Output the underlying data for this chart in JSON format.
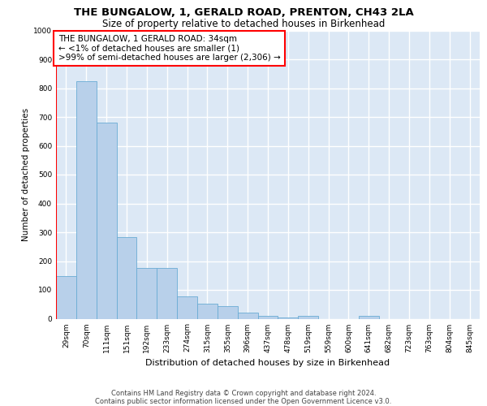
{
  "title": "THE BUNGALOW, 1, GERALD ROAD, PRENTON, CH43 2LA",
  "subtitle": "Size of property relative to detached houses in Birkenhead",
  "xlabel": "Distribution of detached houses by size in Birkenhead",
  "ylabel": "Number of detached properties",
  "categories": [
    "29sqm",
    "70sqm",
    "111sqm",
    "151sqm",
    "192sqm",
    "233sqm",
    "274sqm",
    "315sqm",
    "355sqm",
    "396sqm",
    "437sqm",
    "478sqm",
    "519sqm",
    "559sqm",
    "600sqm",
    "641sqm",
    "682sqm",
    "723sqm",
    "763sqm",
    "804sqm",
    "845sqm"
  ],
  "values": [
    148,
    825,
    680,
    283,
    175,
    175,
    78,
    52,
    43,
    21,
    11,
    3,
    10,
    0,
    0,
    10,
    0,
    0,
    0,
    0,
    0
  ],
  "bar_color": "#b8d0ea",
  "bar_edge_color": "#6aacd4",
  "annotation_text": "THE BUNGALOW, 1 GERALD ROAD: 34sqm\n← <1% of detached houses are smaller (1)\n>99% of semi-detached houses are larger (2,306) →",
  "footer_line1": "Contains HM Land Registry data © Crown copyright and database right 2024.",
  "footer_line2": "Contains public sector information licensed under the Open Government Licence v3.0.",
  "ylim": [
    0,
    1000
  ],
  "yticks": [
    0,
    100,
    200,
    300,
    400,
    500,
    600,
    700,
    800,
    900,
    1000
  ],
  "background_color": "#dce8f5",
  "grid_color": "white",
  "title_fontsize": 9.5,
  "subtitle_fontsize": 8.5,
  "annotation_fontsize": 7.5,
  "tick_fontsize": 6.5,
  "ylabel_fontsize": 7.5,
  "xlabel_fontsize": 8,
  "footer_fontsize": 6.0
}
